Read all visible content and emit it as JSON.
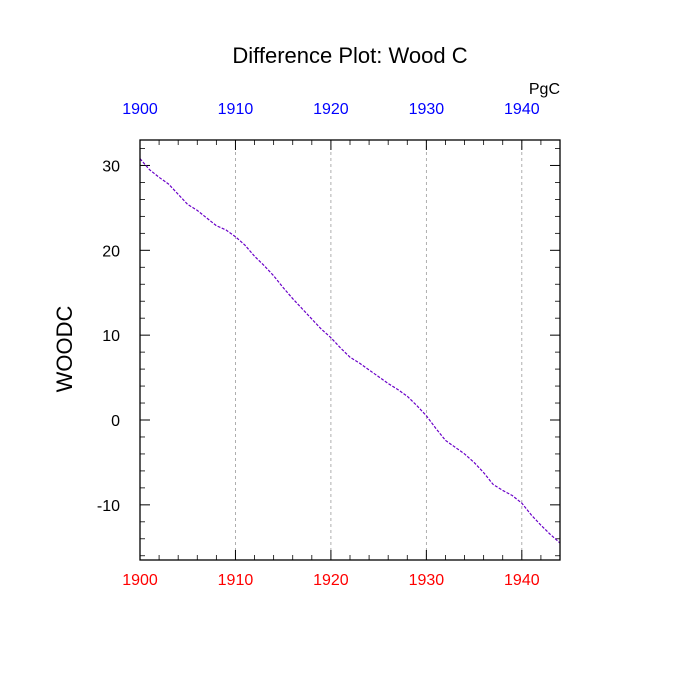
{
  "chart_data": {
    "type": "line",
    "title": "Difference Plot: Wood C",
    "units_label": "PgC",
    "ylabel": "WOODC",
    "xlabel": "",
    "xlim": [
      1900,
      1944
    ],
    "ylim": [
      -16.5,
      33
    ],
    "x_ticks": [
      1900,
      1910,
      1920,
      1930,
      1940
    ],
    "y_ticks": [
      30,
      20,
      10,
      0,
      -10
    ],
    "bottom_tick_color": "#ff0000",
    "top_tick_color": "#0000ff",
    "line_color": "#6a00c8",
    "grid_color": "#9a9a9a",
    "grid": "vertical dashed at major x ticks",
    "series": [
      {
        "x": [
          1900,
          1901,
          1902,
          1903,
          1904,
          1905,
          1906,
          1907,
          1908,
          1909,
          1910,
          1911,
          1912,
          1913,
          1914,
          1915,
          1916,
          1917,
          1918,
          1919,
          1920,
          1921,
          1922,
          1923,
          1924,
          1925,
          1926,
          1927,
          1928,
          1929,
          1930,
          1931,
          1932,
          1933,
          1934,
          1935,
          1936,
          1937,
          1938,
          1939,
          1940,
          1941,
          1942,
          1943,
          1944
        ],
        "y": [
          30.8,
          29.5,
          28.6,
          27.8,
          26.6,
          25.4,
          24.7,
          23.8,
          22.9,
          22.4,
          21.6,
          20.6,
          19.3,
          18.2,
          17.0,
          15.6,
          14.3,
          13.1,
          11.9,
          10.7,
          9.7,
          8.5,
          7.4,
          6.7,
          5.9,
          5.1,
          4.3,
          3.6,
          2.8,
          1.7,
          0.5,
          -1.0,
          -2.4,
          -3.2,
          -4.0,
          -5.0,
          -6.2,
          -7.6,
          -8.3,
          -8.9,
          -9.8,
          -11.2,
          -12.4,
          -13.5,
          -14.5
        ]
      }
    ]
  }
}
